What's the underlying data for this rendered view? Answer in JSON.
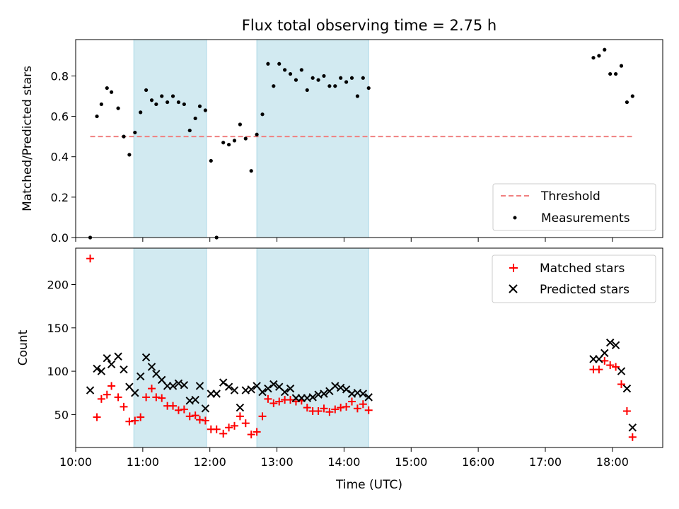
{
  "title": "Flux total observing time = 2.75 h",
  "colors": {
    "band": "#add8e6",
    "threshold": "#f08080",
    "measurement": "#000000",
    "matched": "#ff0000",
    "predicted": "#000000"
  },
  "chart_data": [
    {
      "type": "scatter",
      "ylabel": "Matched/Predicted stars",
      "xlim": [
        "10:00",
        "18:45"
      ],
      "ylim": [
        0,
        0.98
      ],
      "yticks": [
        0.0,
        0.2,
        0.4,
        0.6,
        0.8
      ],
      "ytick_labels": [
        "0.0",
        "0.2",
        "0.4",
        "0.6",
        "0.8"
      ],
      "grid": false,
      "legend_position": "lower-right",
      "shaded_intervals": [
        [
          "10:52",
          "11:57"
        ],
        [
          "12:42",
          "14:22"
        ]
      ],
      "series": [
        {
          "name": "Threshold",
          "kind": "dashed-line",
          "x": [
            "10:13",
            "18:18"
          ],
          "y": [
            0.5,
            0.5
          ]
        },
        {
          "name": "Measurements",
          "kind": "points",
          "x": [
            "10:13",
            "10:19",
            "10:23",
            "10:28",
            "10:32",
            "10:38",
            "10:43",
            "10:48",
            "10:53",
            "10:58",
            "11:03",
            "11:08",
            "11:12",
            "11:17",
            "11:22",
            "11:27",
            "11:32",
            "11:37",
            "11:42",
            "11:47",
            "11:51",
            "11:56",
            "12:01",
            "12:06",
            "12:12",
            "12:17",
            "12:22",
            "12:27",
            "12:32",
            "12:37",
            "12:42",
            "12:47",
            "12:52",
            "12:57",
            "13:02",
            "13:07",
            "13:12",
            "13:17",
            "13:22",
            "13:27",
            "13:32",
            "13:37",
            "13:42",
            "13:47",
            "13:52",
            "13:57",
            "14:02",
            "14:07",
            "14:12",
            "14:17",
            "14:22",
            "17:43",
            "17:48",
            "17:53",
            "17:58",
            "18:03",
            "18:08",
            "18:13",
            "18:18"
          ],
          "y": [
            0.0,
            0.6,
            0.66,
            0.74,
            0.72,
            0.64,
            0.5,
            0.41,
            0.52,
            0.62,
            0.73,
            0.68,
            0.66,
            0.7,
            0.67,
            0.7,
            0.67,
            0.66,
            0.53,
            0.59,
            0.65,
            0.63,
            0.38,
            0.0,
            0.47,
            0.46,
            0.48,
            0.56,
            0.49,
            0.33,
            0.51,
            0.61,
            0.86,
            0.75,
            0.86,
            0.83,
            0.81,
            0.78,
            0.83,
            0.73,
            0.79,
            0.78,
            0.8,
            0.75,
            0.75,
            0.79,
            0.77,
            0.79,
            0.7,
            0.79,
            0.74,
            0.89,
            0.9,
            0.93,
            0.81,
            0.81,
            0.85,
            0.67,
            0.7
          ]
        }
      ]
    },
    {
      "type": "scatter",
      "xlabel": "Time (UTC)",
      "ylabel": "Count",
      "xlim": [
        "10:00",
        "18:45"
      ],
      "ylim": [
        12,
        242
      ],
      "xticks": [
        "10:00",
        "11:00",
        "12:00",
        "13:00",
        "14:00",
        "15:00",
        "16:00",
        "17:00",
        "18:00"
      ],
      "yticks": [
        50,
        100,
        150,
        200
      ],
      "ytick_labels": [
        "50",
        "100",
        "150",
        "200"
      ],
      "grid": false,
      "legend_position": "upper-right",
      "shaded_intervals": [
        [
          "10:52",
          "11:57"
        ],
        [
          "12:42",
          "14:22"
        ]
      ],
      "series": [
        {
          "name": "Matched stars",
          "marker": "+",
          "x": [
            "10:13",
            "10:19",
            "10:23",
            "10:28",
            "10:32",
            "10:38",
            "10:43",
            "10:48",
            "10:53",
            "10:58",
            "11:03",
            "11:08",
            "11:12",
            "11:17",
            "11:22",
            "11:27",
            "11:32",
            "11:37",
            "11:42",
            "11:47",
            "11:51",
            "11:56",
            "12:01",
            "12:06",
            "12:12",
            "12:17",
            "12:22",
            "12:27",
            "12:32",
            "12:37",
            "12:42",
            "12:47",
            "12:52",
            "12:57",
            "13:02",
            "13:07",
            "13:12",
            "13:17",
            "13:22",
            "13:27",
            "13:32",
            "13:37",
            "13:42",
            "13:47",
            "13:52",
            "13:57",
            "14:02",
            "14:07",
            "14:12",
            "14:17",
            "14:22",
            "17:43",
            "17:48",
            "17:53",
            "17:58",
            "18:03",
            "18:08",
            "18:13",
            "18:18"
          ],
          "y": [
            230,
            47,
            68,
            73,
            83,
            70,
            59,
            42,
            43,
            47,
            70,
            80,
            70,
            69,
            60,
            60,
            55,
            56,
            48,
            49,
            44,
            43,
            33,
            33,
            28,
            35,
            37,
            48,
            40,
            27,
            30,
            48,
            68,
            63,
            65,
            67,
            67,
            65,
            66,
            58,
            54,
            54,
            57,
            53,
            56,
            58,
            59,
            65,
            57,
            62,
            55,
            102,
            102,
            112,
            107,
            105,
            85,
            54,
            24
          ]
        },
        {
          "name": "Predicted stars",
          "marker": "x",
          "x": [
            "10:13",
            "10:19",
            "10:23",
            "10:28",
            "10:32",
            "10:38",
            "10:43",
            "10:48",
            "10:53",
            "10:58",
            "11:03",
            "11:08",
            "11:12",
            "11:17",
            "11:22",
            "11:27",
            "11:32",
            "11:37",
            "11:42",
            "11:47",
            "11:51",
            "11:56",
            "12:01",
            "12:06",
            "12:12",
            "12:17",
            "12:22",
            "12:27",
            "12:32",
            "12:37",
            "12:42",
            "12:47",
            "12:52",
            "12:57",
            "13:02",
            "13:07",
            "13:12",
            "13:17",
            "13:22",
            "13:27",
            "13:32",
            "13:37",
            "13:42",
            "13:47",
            "13:52",
            "13:57",
            "14:02",
            "14:07",
            "14:12",
            "14:17",
            "14:22",
            "17:43",
            "17:48",
            "17:53",
            "17:58",
            "18:03",
            "18:08",
            "18:13",
            "18:18"
          ],
          "y": [
            78,
            103,
            100,
            115,
            108,
            117,
            102,
            82,
            75,
            94,
            116,
            105,
            97,
            90,
            83,
            83,
            86,
            84,
            66,
            67,
            83,
            57,
            74,
            74,
            87,
            82,
            78,
            58,
            78,
            79,
            83,
            76,
            80,
            85,
            82,
            76,
            80,
            69,
            69,
            69,
            70,
            73,
            74,
            77,
            83,
            81,
            79,
            74,
            75,
            74,
            70,
            114,
            114,
            121,
            133,
            130,
            100,
            80,
            35
          ]
        }
      ]
    }
  ]
}
